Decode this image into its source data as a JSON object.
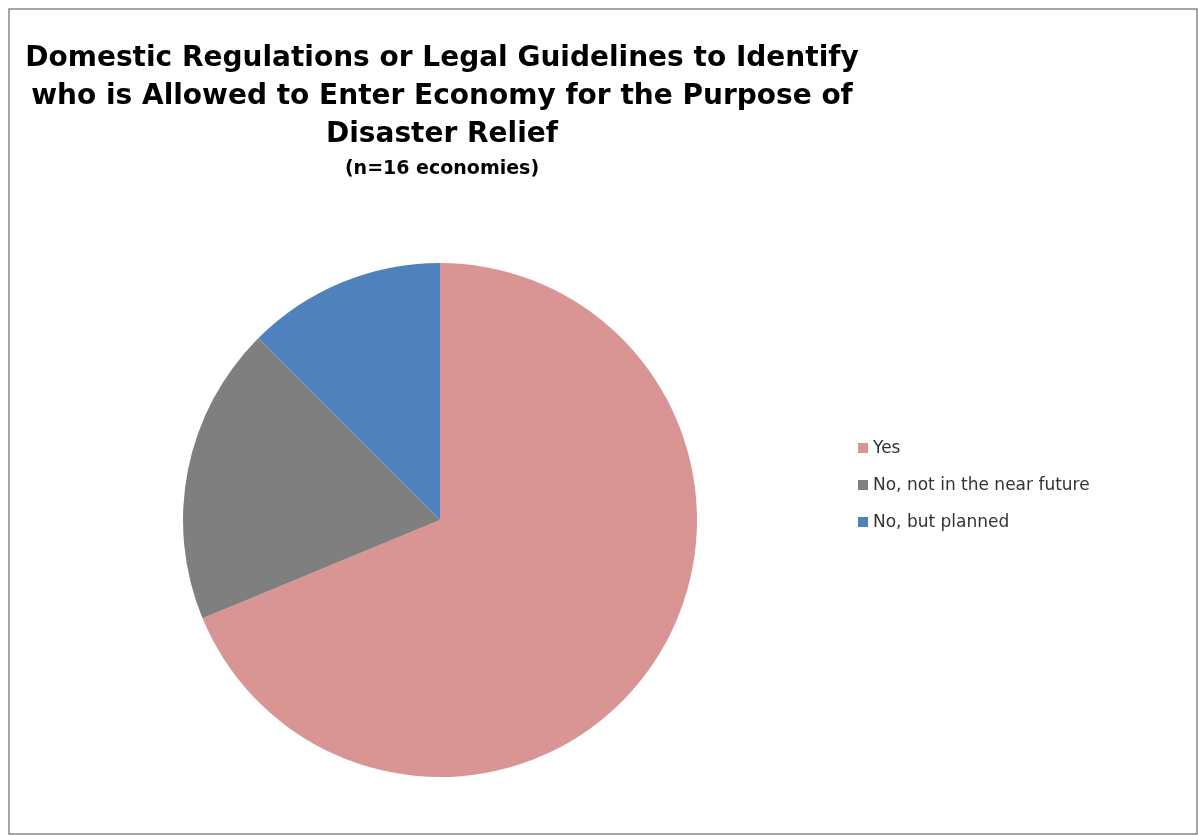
{
  "chart_data": {
    "type": "pie",
    "title": "Domestic Regulations or Legal Guidelines to Identify who is Allowed to Enter Economy for the Purpose of Disaster Relief",
    "subtitle": "(n=16 economies)",
    "categories": [
      "Yes",
      "No, not in the near future",
      "No, but planned"
    ],
    "values": [
      68.75,
      18.75,
      12.5
    ],
    "colors": [
      "#d99594",
      "#7f7f7f",
      "#4f81bd"
    ],
    "legend": "right"
  }
}
